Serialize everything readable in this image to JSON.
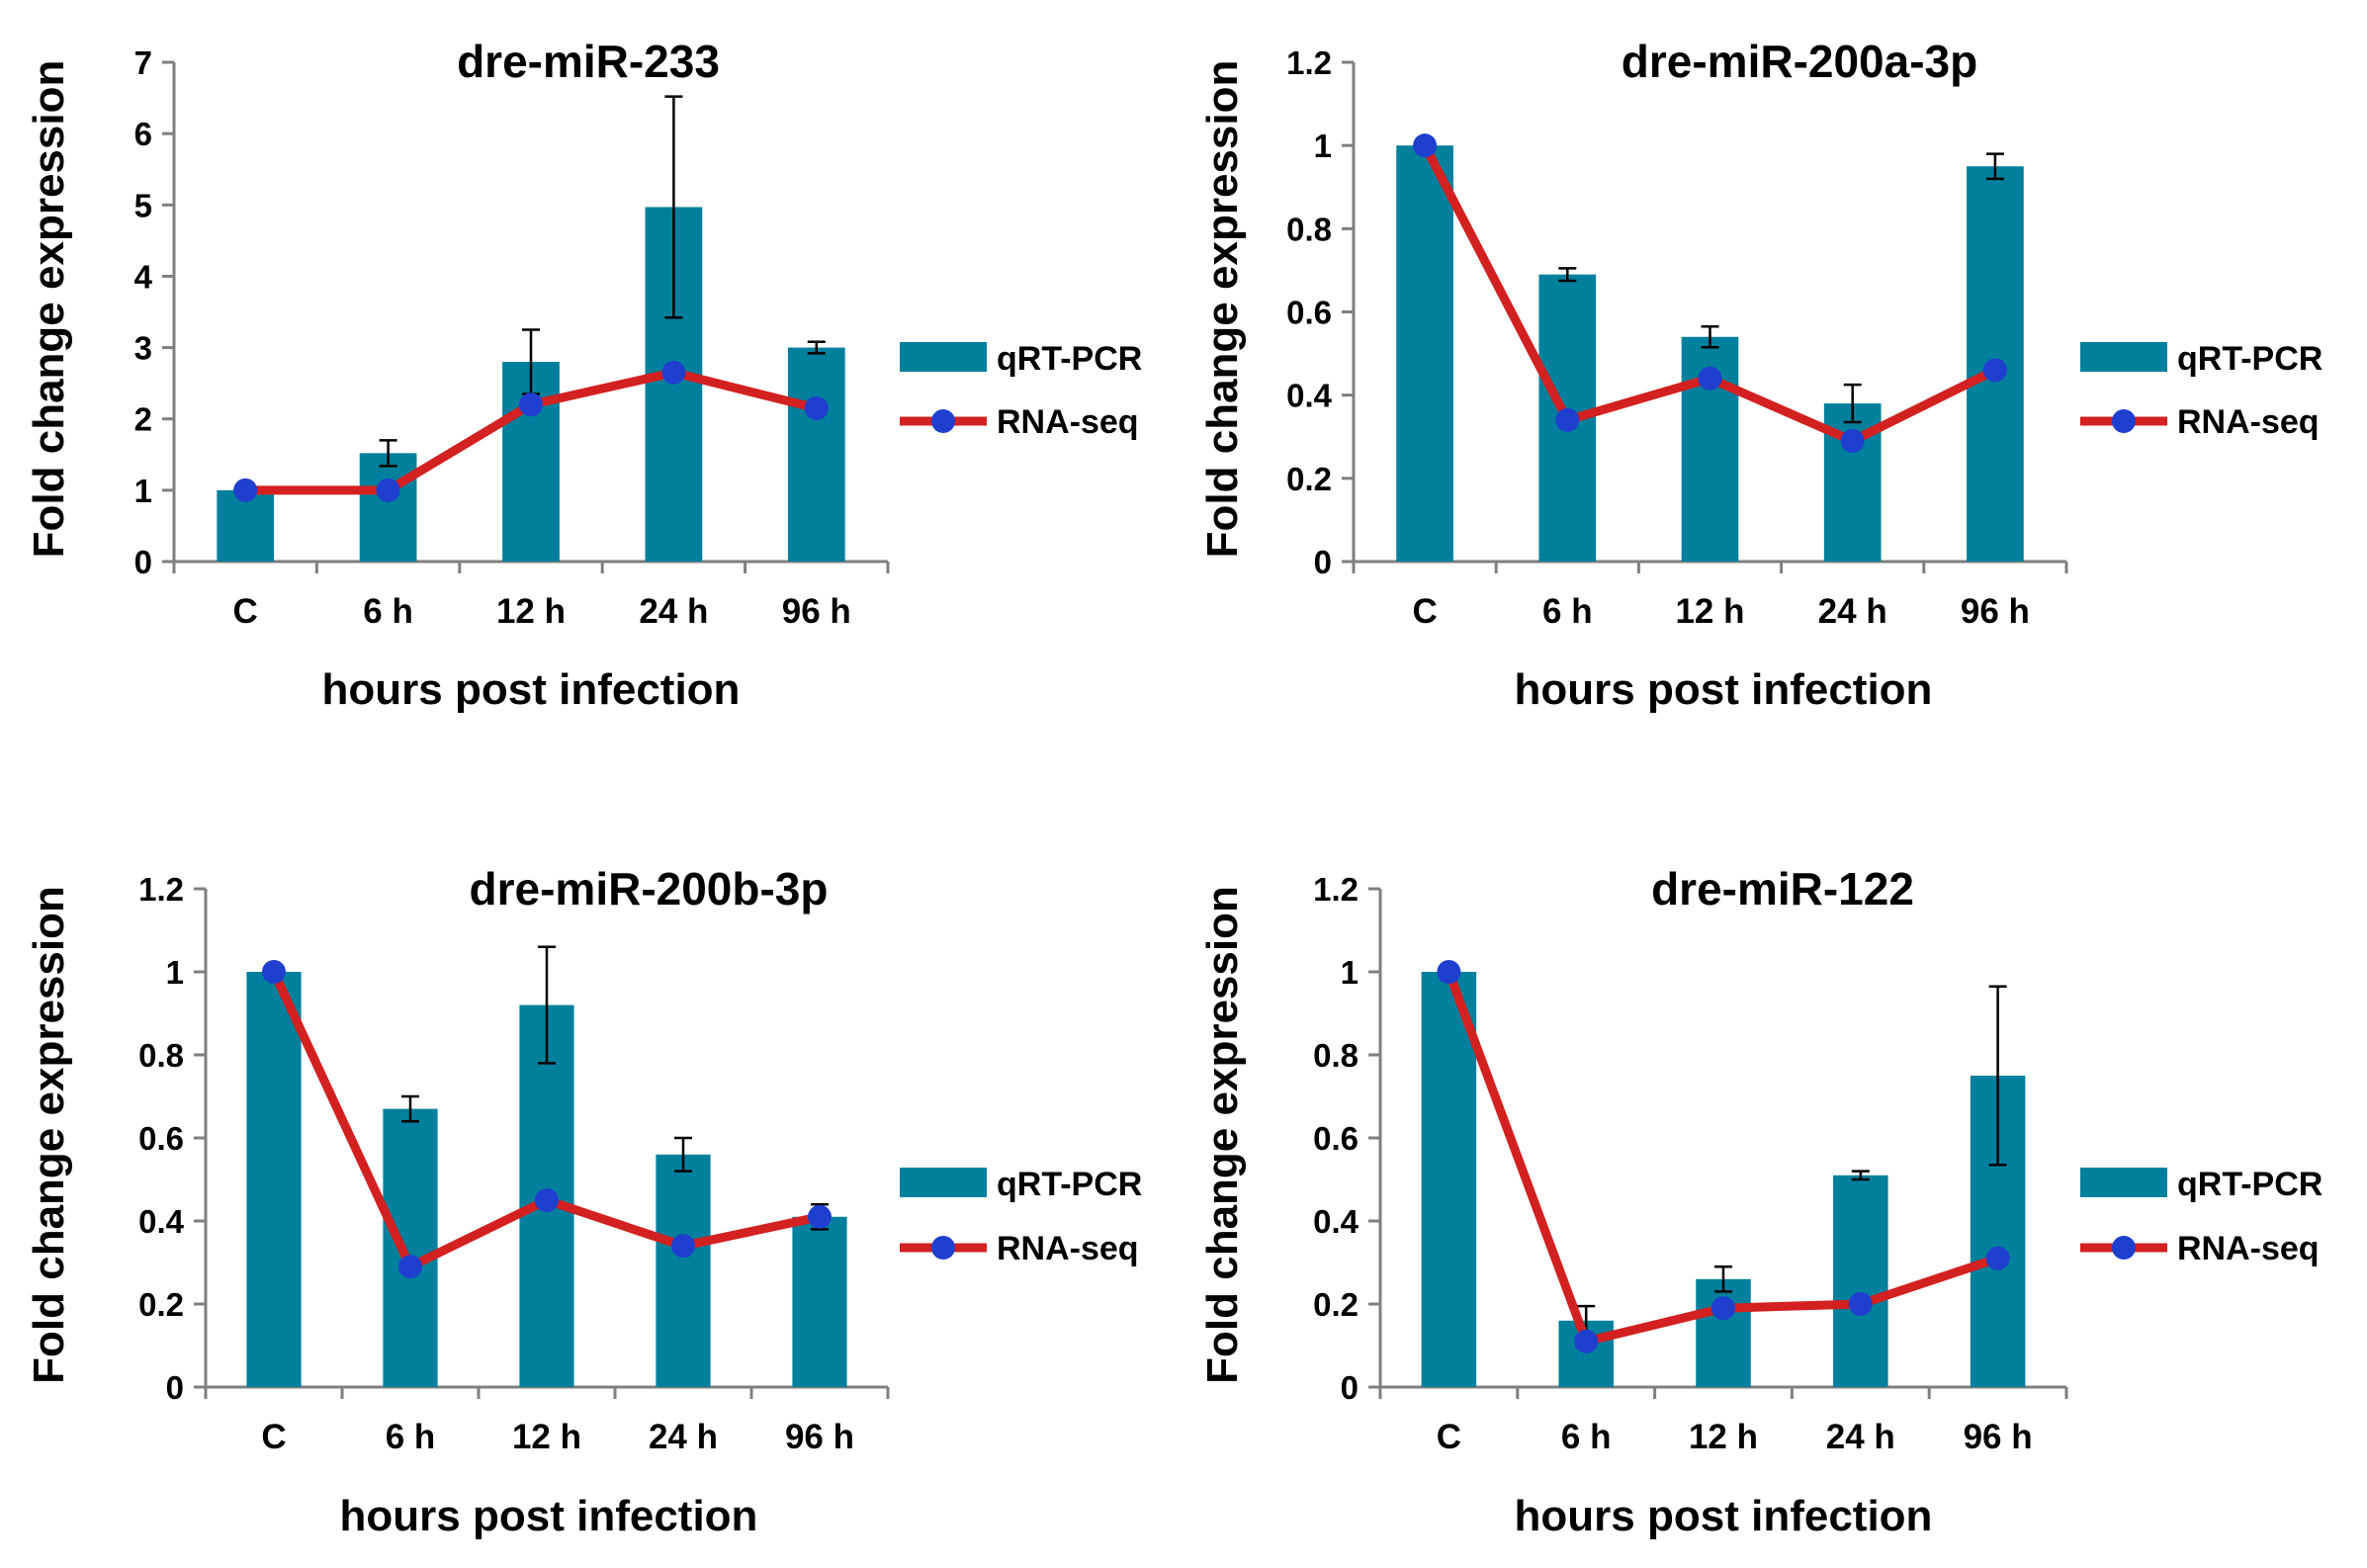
{
  "colors": {
    "bar": "#00809c",
    "line": "#d32020",
    "marker": "#1f3fcf",
    "axis": "#7f7f7f",
    "error": "#000000"
  },
  "legend": {
    "bar_label": "qRT-PCR",
    "line_label": "RNA-seq"
  },
  "chart_data": [
    {
      "type": "bar",
      "title": "dre-miR-233",
      "xlabel": "hours post infection",
      "ylabel": "Fold change expression",
      "ylim": [
        0,
        7
      ],
      "yticks": [
        "0",
        "1",
        "2",
        "3",
        "4",
        "5",
        "6",
        "7"
      ],
      "categories": [
        "C",
        "6 h",
        "12 h",
        "24 h",
        "96 h"
      ],
      "series": [
        {
          "name": "qRT-PCR",
          "kind": "bar",
          "values": [
            1.0,
            1.52,
            2.8,
            4.97,
            3.0
          ],
          "errors": [
            0.0,
            0.18,
            0.45,
            1.55,
            0.08
          ]
        },
        {
          "name": "RNA-seq",
          "kind": "line",
          "values": [
            1.0,
            1.0,
            2.2,
            2.65,
            2.15
          ]
        }
      ]
    },
    {
      "type": "bar",
      "title": "dre-miR-200a-3p",
      "xlabel": "hours post infection",
      "ylabel": "Fold change expression",
      "ylim": [
        0,
        1.2
      ],
      "yticks": [
        "0",
        "0.2",
        "0.4",
        "0.6",
        "0.8",
        "1",
        "1.2"
      ],
      "categories": [
        "C",
        "6 h",
        "12 h",
        "24 h",
        "96 h"
      ],
      "series": [
        {
          "name": "qRT-PCR",
          "kind": "bar",
          "values": [
            1.0,
            0.69,
            0.54,
            0.38,
            0.95
          ],
          "errors": [
            0.0,
            0.015,
            0.025,
            0.045,
            0.03
          ]
        },
        {
          "name": "RNA-seq",
          "kind": "line",
          "values": [
            1.0,
            0.34,
            0.44,
            0.29,
            0.46
          ]
        }
      ]
    },
    {
      "type": "bar",
      "title": "dre-miR-200b-3p",
      "xlabel": "hours post infection",
      "ylabel": "Fold change expression",
      "ylim": [
        0,
        1.2
      ],
      "yticks": [
        "0",
        "0.2",
        "0.4",
        "0.6",
        "0.8",
        "1",
        "1.2"
      ],
      "categories": [
        "C",
        "6 h",
        "12 h",
        "24 h",
        "96 h"
      ],
      "series": [
        {
          "name": "qRT-PCR",
          "kind": "bar",
          "values": [
            1.0,
            0.67,
            0.92,
            0.56,
            0.41
          ],
          "errors": [
            0.0,
            0.03,
            0.14,
            0.04,
            0.03
          ]
        },
        {
          "name": "RNA-seq",
          "kind": "line",
          "values": [
            1.0,
            0.29,
            0.45,
            0.34,
            0.41
          ]
        }
      ]
    },
    {
      "type": "bar",
      "title": "dre-miR-122",
      "xlabel": "hours post infection",
      "ylabel": "Fold change expression",
      "ylim": [
        0,
        1.2
      ],
      "yticks": [
        "0",
        "0.2",
        "0.4",
        "0.6",
        "0.8",
        "1",
        "1.2"
      ],
      "categories": [
        "C",
        "6 h",
        "12 h",
        "24 h",
        "96 h"
      ],
      "series": [
        {
          "name": "qRT-PCR",
          "kind": "bar",
          "values": [
            1.0,
            0.16,
            0.26,
            0.51,
            0.75
          ],
          "errors": [
            0.0,
            0.035,
            0.03,
            0.01,
            0.215
          ]
        },
        {
          "name": "RNA-seq",
          "kind": "line",
          "values": [
            1.0,
            0.11,
            0.19,
            0.2,
            0.31
          ]
        }
      ]
    }
  ]
}
